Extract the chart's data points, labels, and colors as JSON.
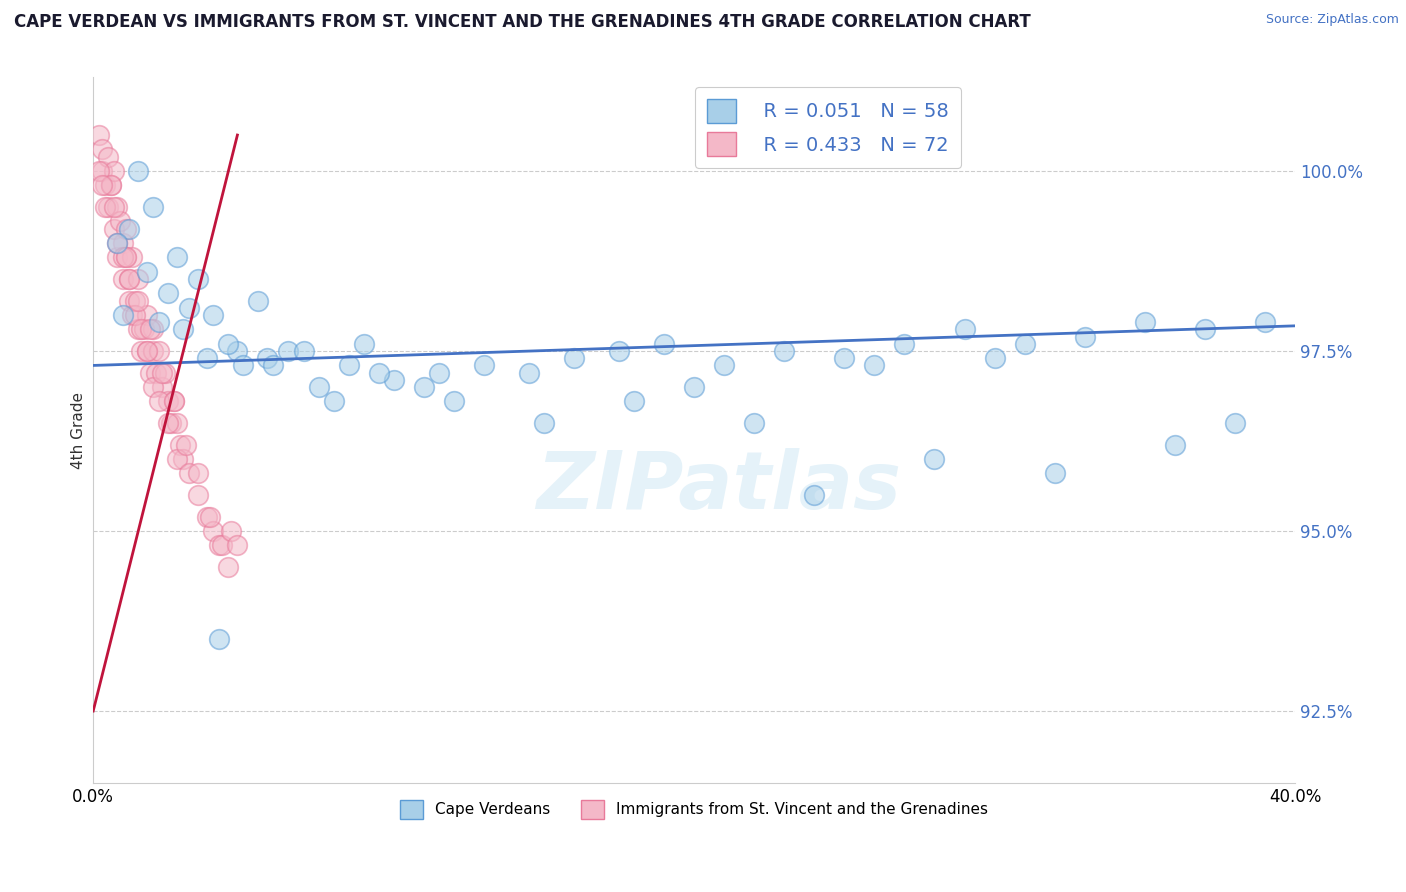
{
  "title": "CAPE VERDEAN VS IMMIGRANTS FROM ST. VINCENT AND THE GRENADINES 4TH GRADE CORRELATION CHART",
  "source": "Source: ZipAtlas.com",
  "ylabel": "4th Grade",
  "xlim": [
    0.0,
    40.0
  ],
  "ylim": [
    91.5,
    101.3
  ],
  "yticks": [
    92.5,
    95.0,
    97.5,
    100.0
  ],
  "ytick_labels": [
    "92.5%",
    "95.0%",
    "97.5%",
    "100.0%"
  ],
  "blue_color": "#a8cfe8",
  "pink_color": "#f4b8c8",
  "blue_edge": "#5b9bd5",
  "pink_edge": "#e87a9a",
  "trend_blue": "#4472c4",
  "trend_pink": "#c0143c",
  "legend_R_blue": "R = 0.051",
  "legend_N_blue": "N = 58",
  "legend_R_pink": "R = 0.433",
  "legend_N_pink": "N = 72",
  "legend_label_blue": "Cape Verdeans",
  "legend_label_pink": "Immigrants from St. Vincent and the Grenadines",
  "watermark": "ZIPatlas",
  "blue_x": [
    1.5,
    2.0,
    2.8,
    3.5,
    1.2,
    4.0,
    2.5,
    1.8,
    3.2,
    0.8,
    5.5,
    4.8,
    3.8,
    2.2,
    1.0,
    4.5,
    3.0,
    5.0,
    6.5,
    5.8,
    7.0,
    8.5,
    9.0,
    10.0,
    11.5,
    13.0,
    14.5,
    16.0,
    17.5,
    19.0,
    21.0,
    23.0,
    25.0,
    27.0,
    29.0,
    31.0,
    33.0,
    35.0,
    37.0,
    39.0,
    6.0,
    7.5,
    9.5,
    12.0,
    15.0,
    18.0,
    20.0,
    22.0,
    26.0,
    30.0,
    8.0,
    11.0,
    24.0,
    28.0,
    32.0,
    36.0,
    38.0,
    4.2
  ],
  "blue_y": [
    100.0,
    99.5,
    98.8,
    98.5,
    99.2,
    98.0,
    98.3,
    98.6,
    98.1,
    99.0,
    98.2,
    97.5,
    97.4,
    97.9,
    98.0,
    97.6,
    97.8,
    97.3,
    97.5,
    97.4,
    97.5,
    97.3,
    97.6,
    97.1,
    97.2,
    97.3,
    97.2,
    97.4,
    97.5,
    97.6,
    97.3,
    97.5,
    97.4,
    97.6,
    97.8,
    97.6,
    97.7,
    97.9,
    97.8,
    97.9,
    97.3,
    97.0,
    97.2,
    96.8,
    96.5,
    96.8,
    97.0,
    96.5,
    97.3,
    97.4,
    96.8,
    97.0,
    95.5,
    96.0,
    95.8,
    96.2,
    96.5,
    93.5
  ],
  "pink_x": [
    0.2,
    0.3,
    0.3,
    0.4,
    0.5,
    0.5,
    0.6,
    0.7,
    0.7,
    0.8,
    0.8,
    0.9,
    1.0,
    1.0,
    1.1,
    1.1,
    1.2,
    1.2,
    1.3,
    1.3,
    1.4,
    1.5,
    1.5,
    1.6,
    1.7,
    1.8,
    1.8,
    1.9,
    2.0,
    2.0,
    2.1,
    2.2,
    2.3,
    2.4,
    2.5,
    2.6,
    2.7,
    2.8,
    2.9,
    3.0,
    0.2,
    0.4,
    0.6,
    0.8,
    1.0,
    1.2,
    1.4,
    1.6,
    1.8,
    2.0,
    2.2,
    2.5,
    2.8,
    3.2,
    3.5,
    3.8,
    4.0,
    4.2,
    0.3,
    0.7,
    1.1,
    1.5,
    1.9,
    2.3,
    2.7,
    3.1,
    3.5,
    3.9,
    4.3,
    4.5,
    4.6,
    4.8
  ],
  "pink_y": [
    100.5,
    100.3,
    100.0,
    99.8,
    100.2,
    99.5,
    99.8,
    100.0,
    99.2,
    99.5,
    98.8,
    99.3,
    99.0,
    98.5,
    98.8,
    99.2,
    98.5,
    98.2,
    98.8,
    98.0,
    98.2,
    97.8,
    98.5,
    97.5,
    97.8,
    97.5,
    98.0,
    97.2,
    97.8,
    97.5,
    97.2,
    97.5,
    97.0,
    97.2,
    96.8,
    96.5,
    96.8,
    96.5,
    96.2,
    96.0,
    100.0,
    99.5,
    99.8,
    99.0,
    98.8,
    98.5,
    98.0,
    97.8,
    97.5,
    97.0,
    96.8,
    96.5,
    96.0,
    95.8,
    95.5,
    95.2,
    95.0,
    94.8,
    99.8,
    99.5,
    98.8,
    98.2,
    97.8,
    97.2,
    96.8,
    96.2,
    95.8,
    95.2,
    94.8,
    94.5,
    95.0,
    94.8
  ],
  "blue_trend_x0": 0.0,
  "blue_trend_y0": 97.3,
  "blue_trend_x1": 40.0,
  "blue_trend_y1": 97.85,
  "pink_trend_x0": 0.0,
  "pink_trend_y0": 92.5,
  "pink_trend_x1": 4.8,
  "pink_trend_y1": 100.5
}
